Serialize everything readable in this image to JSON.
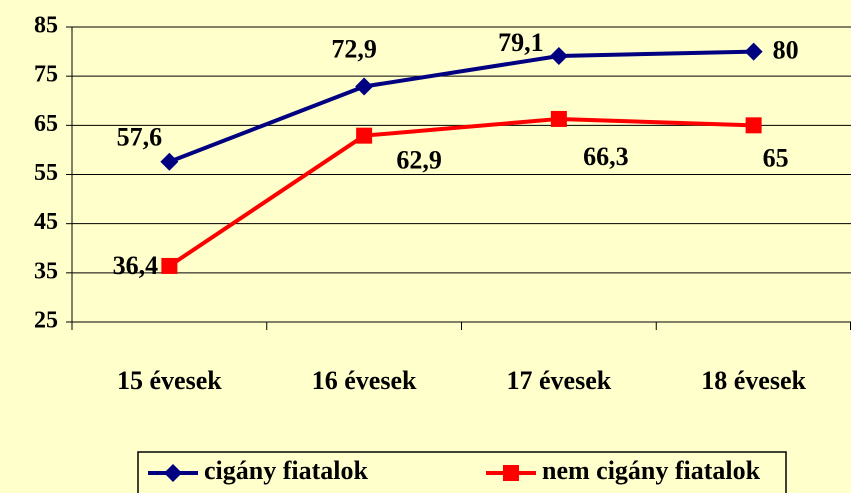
{
  "chart_data": {
    "type": "line",
    "categories": [
      "15 évesek",
      "16 évesek",
      "17 évesek",
      "18 évesek"
    ],
    "series": [
      {
        "name": "cigány fiatalok",
        "color": "#000080",
        "marker": "diamond",
        "values": [
          57.6,
          72.9,
          79.1,
          80
        ],
        "value_labels": [
          "57,6",
          "72,9",
          "79,1",
          "80"
        ]
      },
      {
        "name": "nem cigány fiatalok",
        "color": "#ff0000",
        "marker": "square",
        "values": [
          36.4,
          62.9,
          66.3,
          65
        ],
        "value_labels": [
          "36,4",
          "62,9",
          "66,3",
          "65"
        ]
      }
    ],
    "ylim": [
      25,
      85
    ],
    "yticks": [
      25,
      35,
      45,
      55,
      65,
      75,
      85
    ],
    "grid": true,
    "legend": "bottom"
  }
}
